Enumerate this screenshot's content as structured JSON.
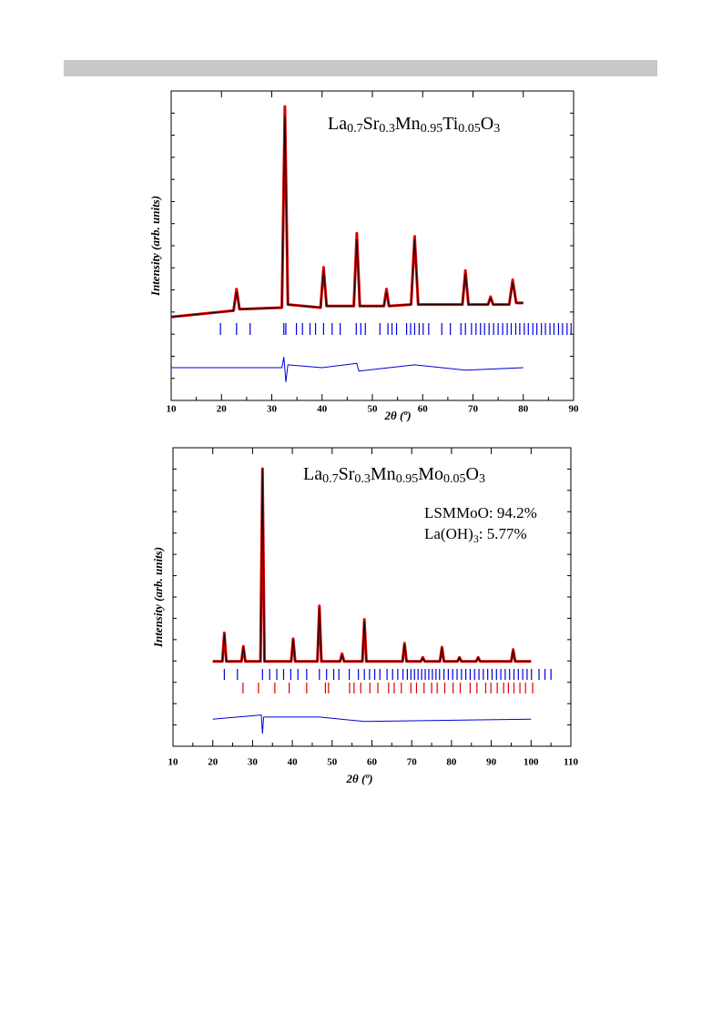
{
  "chart_data": [
    {
      "type": "line",
      "title": "La0.7Sr0.3Mn0.95Ti0.05O3",
      "xlabel": "2θ (º)",
      "ylabel": "Intensity (arb. units)",
      "xlim": [
        10,
        90
      ],
      "xticks": [
        10,
        20,
        30,
        40,
        50,
        60,
        70,
        80,
        90
      ],
      "ylim": [
        0,
        100
      ],
      "series": [
        {
          "color": "#e00000",
          "x": [
            10,
            22.4,
            23.0,
            23.6,
            32.0,
            32.6,
            33.2,
            39.7,
            40.3,
            40.9,
            46.3,
            46.9,
            47.5,
            52.3,
            52.8,
            53.3,
            57.7,
            58.4,
            59.1,
            67.9,
            68.5,
            69.1,
            73.0,
            73.5,
            74.0,
            77.2,
            77.9,
            78.6,
            80
          ],
          "values": [
            27,
            29,
            36,
            29.5,
            30,
            95,
            31,
            30,
            43,
            30.5,
            30.5,
            54,
            30.5,
            30.5,
            36,
            30.5,
            31,
            53,
            31,
            31,
            42,
            31,
            31,
            33.5,
            31,
            31,
            39,
            31.5,
            31.5
          ]
        },
        {
          "color": "#000000",
          "x": [
            10,
            22.4,
            23.0,
            23.6,
            32.0,
            32.6,
            33.2,
            39.7,
            40.3,
            40.9,
            46.3,
            46.9,
            47.5,
            52.3,
            52.8,
            53.3,
            57.7,
            58.4,
            59.1,
            67.9,
            68.5,
            69.1,
            73.0,
            73.5,
            74.0,
            77.2,
            77.9,
            78.6,
            80
          ],
          "values": [
            27,
            29,
            35,
            29.5,
            30,
            92,
            31,
            30,
            42,
            30.5,
            30.5,
            52,
            30.5,
            30.5,
            35,
            30.5,
            31,
            52,
            31,
            31,
            41,
            31,
            31,
            33,
            31,
            31,
            38,
            31.5,
            31.5
          ]
        },
        {
          "color": "#0000dd",
          "x": [
            10,
            32,
            32.4,
            32.8,
            33.2,
            40,
            46.9,
            47.3,
            58.4,
            68.5,
            80
          ],
          "values": [
            10.6,
            10.6,
            14,
            6,
            11.5,
            10.6,
            12,
            9.5,
            11.5,
            9.8,
            10.6
          ]
        }
      ],
      "reflections": [
        {
          "color": "#0000dd",
          "positions": [
            19.8,
            23.0,
            25.7,
            32.4,
            32.8,
            34.9,
            36.1,
            37.6,
            38.7,
            40.3,
            42,
            43.6,
            46.8,
            47.7,
            48.6,
            51.5,
            53.1,
            53.9,
            54.8,
            56.8,
            57.6,
            58.4,
            59.3,
            60.1,
            61.2,
            63.8,
            65.5,
            67.6,
            68.5,
            69.7,
            70.6,
            71.5,
            72.3,
            73.2,
            74.1,
            75.0,
            75.9,
            76.8,
            77.6,
            78.5,
            79.3,
            80.2,
            81.0,
            81.9,
            82.7,
            83.6,
            84.4,
            85.3,
            86.1,
            87.0,
            87.8,
            88.7,
            89.5
          ]
        }
      ]
    },
    {
      "type": "line",
      "title": "La0.7Sr0.3Mn0.95Mo0.05O3",
      "annotations": [
        "LSMMoO: 94.2%",
        "La(OH)3: 5.77%"
      ],
      "xlabel": "2θ (º)",
      "ylabel": "Intensity (arb. units)",
      "xlim": [
        10,
        110
      ],
      "xticks": [
        10,
        20,
        30,
        40,
        50,
        60,
        70,
        80,
        90,
        100,
        110
      ],
      "ylim": [
        0,
        100
      ],
      "series": [
        {
          "color": "#e00000",
          "x": [
            20,
            22.4,
            22.9,
            23.4,
            27.2,
            27.7,
            28.2,
            32.0,
            32.5,
            33.0,
            39.7,
            40.2,
            40.7,
            46.3,
            46.8,
            47.3,
            52.0,
            52.5,
            53.0,
            57.6,
            58.1,
            58.6,
            67.7,
            68.2,
            68.7,
            72.3,
            72.8,
            73.3,
            77.1,
            77.6,
            78.1,
            81.5,
            82,
            82.5,
            86.2,
            86.7,
            87.2,
            95,
            95.5,
            96,
            100
          ],
          "values": [
            28.4,
            28.4,
            38,
            28.4,
            28.4,
            33.5,
            28.4,
            28.4,
            93,
            28.4,
            28.4,
            36,
            28.4,
            28.4,
            47,
            28.4,
            28.4,
            31,
            28.4,
            28.4,
            42.5,
            28.4,
            28.4,
            34.5,
            28.4,
            28.4,
            29.8,
            28.4,
            28.4,
            33.2,
            28.4,
            28.4,
            29.8,
            28.4,
            28.4,
            29.8,
            28.4,
            28.4,
            32.4,
            28.4,
            28.4
          ]
        },
        {
          "color": "#000000",
          "x": [
            20,
            22.4,
            22.9,
            23.4,
            27.2,
            27.7,
            28.2,
            32.0,
            32.5,
            33.0,
            39.7,
            40.2,
            40.7,
            46.3,
            46.8,
            47.3,
            52.0,
            52.5,
            53.0,
            57.6,
            58.1,
            58.6,
            67.7,
            68.2,
            68.7,
            72.3,
            72.8,
            73.3,
            77.1,
            77.6,
            78.1,
            81.5,
            82,
            82.5,
            86.2,
            86.7,
            87.2,
            95,
            95.5,
            96,
            100
          ],
          "values": [
            28.4,
            28.4,
            37.5,
            28.4,
            28.4,
            33.2,
            28.4,
            28.4,
            92.7,
            28.4,
            28.4,
            35.7,
            28.4,
            28.4,
            46.3,
            28.4,
            28.4,
            30.5,
            28.4,
            28.4,
            41.8,
            28.4,
            28.4,
            34.1,
            28.4,
            28.4,
            29.5,
            28.4,
            28.4,
            32.9,
            28.4,
            28.4,
            29.6,
            28.4,
            28.4,
            29.6,
            28.4,
            28.4,
            32,
            28.4,
            28.4
          ]
        },
        {
          "color": "#0000dd",
          "x": [
            20,
            32.2,
            32.5,
            32.8,
            46.8,
            58.1,
            100
          ],
          "values": [
            9.1,
            10.5,
            4.3,
            9.8,
            9.8,
            8.3,
            9.1
          ]
        }
      ],
      "reflections": [
        {
          "color": "#0000dd",
          "positions": [
            22.9,
            26.2,
            32.5,
            34.3,
            36.1,
            37.8,
            39.6,
            41.4,
            43.6,
            46.8,
            48.6,
            50.4,
            51.7,
            54.3,
            56.6,
            58.1,
            59.4,
            60.7,
            62,
            63.8,
            65.2,
            66.5,
            67.8,
            68.9,
            69.8,
            70.7,
            71.6,
            72.5,
            73.4,
            74.3,
            75.2,
            76.1,
            77,
            78.1,
            79.2,
            80.3,
            81.4,
            82.5,
            83.6,
            84.7,
            85.8,
            86.9,
            88,
            89.1,
            90.2,
            91.3,
            92.4,
            93.5,
            94.6,
            95.7,
            96.8,
            97.9,
            99,
            100.1,
            102,
            103.5,
            105
          ]
        },
        {
          "color": "#e00000",
          "positions": [
            27.6,
            31.5,
            35.6,
            39.2,
            43.6,
            48.3,
            49.1,
            54.4,
            55.5,
            57.2,
            59.5,
            61.5,
            64.2,
            65.6,
            67.4,
            69.8,
            71.2,
            73.1,
            75,
            76.4,
            78.3,
            80.4,
            82.2,
            84.7,
            86.4,
            88.6,
            89.9,
            91.5,
            93.1,
            94.3,
            95.7,
            97.2,
            98.6,
            100.4
          ]
        }
      ]
    }
  ]
}
